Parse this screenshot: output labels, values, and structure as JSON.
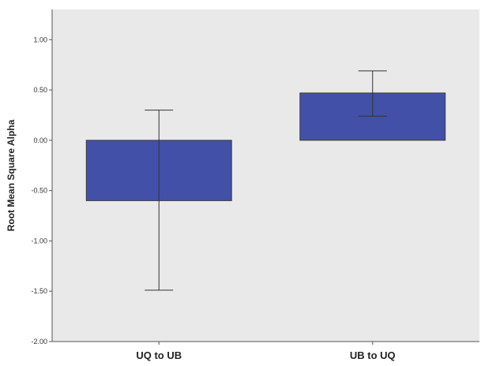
{
  "chart_data": {
    "type": "bar",
    "title": "",
    "xlabel": "",
    "ylabel": "Root Mean Square Alpha",
    "categories": [
      "UQ to UB",
      "UB to UQ"
    ],
    "values": [
      -0.6,
      0.47
    ],
    "error_bars": [
      {
        "low": -1.49,
        "high": 0.3
      },
      {
        "low": 0.24,
        "high": 0.69
      }
    ],
    "ylim": [
      -2.0,
      1.3
    ],
    "yticks": [
      -2.0,
      -1.5,
      -1.0,
      -0.5,
      0.0,
      0.5,
      1.0
    ],
    "ytick_labels": [
      "-2.00",
      "-1.50",
      "-1.00",
      "-0.50",
      "0.00",
      "0.50",
      "1.00"
    ],
    "grid": false,
    "colors": {
      "bar": "#4350a8",
      "bar_edge": "#3a3a3a",
      "plot_bg": "#e9e9e9",
      "page_bg": "#ffffff"
    }
  }
}
